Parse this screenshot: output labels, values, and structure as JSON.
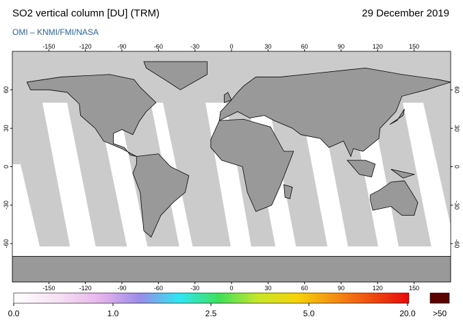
{
  "header": {
    "title": "SO2 vertical column [DU] (TRM)",
    "date": "29 December 2019",
    "credit": "OMI  –  KNMI/FMI/NASA"
  },
  "map": {
    "lon_ticks": [
      -150,
      -120,
      -90,
      -60,
      -30,
      0,
      30,
      60,
      90,
      120,
      150
    ],
    "lat_ticks": [
      60,
      30,
      0,
      -30,
      -60
    ]
  },
  "colorbar": {
    "ticks": [
      {
        "value": 0,
        "label": "0.0"
      },
      {
        "value": 1,
        "label": "1.0"
      },
      {
        "value": 2.5,
        "label": "2.5"
      },
      {
        "value": 5,
        "label": "5.0"
      },
      {
        "value": 20,
        "label": "20.0"
      }
    ],
    "overflow_label": ">50"
  }
}
